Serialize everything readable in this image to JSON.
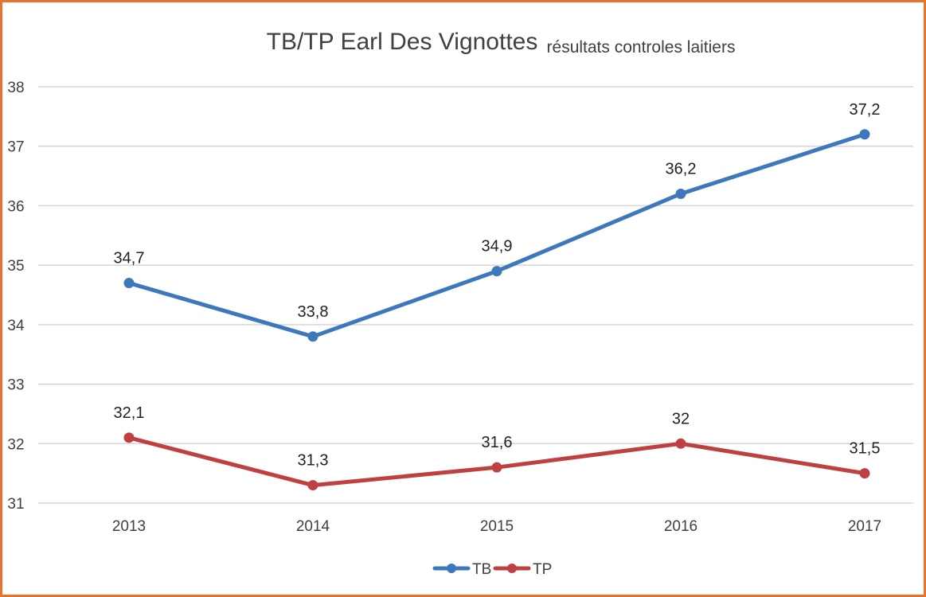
{
  "chart_data": {
    "type": "line",
    "title": "TB/TP Earl Des Vignottes",
    "subtitle": "résultats controles laitiers",
    "categories": [
      "2013",
      "2014",
      "2015",
      "2016",
      "2017"
    ],
    "ylim": [
      31,
      38
    ],
    "yticks": [
      31,
      32,
      33,
      34,
      35,
      36,
      37,
      38
    ],
    "grid": true,
    "legend_position": "bottom",
    "series": [
      {
        "name": "TB",
        "color": "#3d78bd",
        "values": [
          34.7,
          33.8,
          34.9,
          36.2,
          37.2
        ],
        "labels": [
          "34,7",
          "33,8",
          "34,9",
          "36,2",
          "37,2"
        ]
      },
      {
        "name": "TP",
        "color": "#bf4040",
        "values": [
          32.1,
          31.3,
          31.6,
          32.0,
          31.5
        ],
        "labels": [
          "32,1",
          "31,3",
          "31,6",
          "32",
          "31,5"
        ]
      }
    ]
  }
}
